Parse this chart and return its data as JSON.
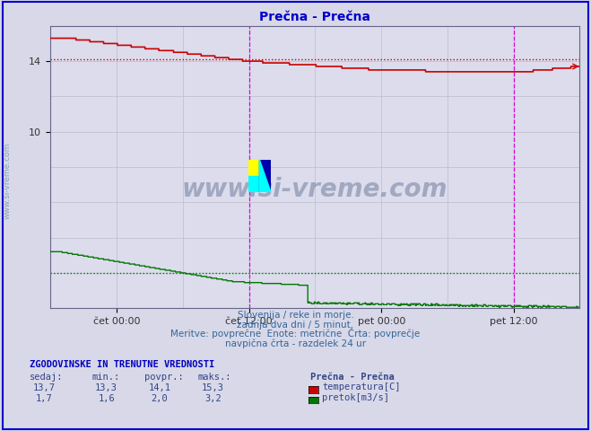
{
  "title": "Prečna - Prečna",
  "title_color": "#0000cc",
  "bg_color": "#d8d8e8",
  "plot_bg_color": "#dcdcec",
  "x_min": 0,
  "x_max": 575,
  "y_min": 0,
  "y_max": 16,
  "y_ticks": [
    10,
    14
  ],
  "x_tick_positions": [
    72,
    216,
    360,
    504
  ],
  "x_tick_labels": [
    "čet 00:00",
    "čet 12:00",
    "pet 00:00",
    "pet 12:00"
  ],
  "temp_color": "#cc0000",
  "flow_color": "#007700",
  "vline_color": "#dd00dd",
  "grid_color": "#bbbbcc",
  "temp_avg": 14.1,
  "flow_avg": 2.0,
  "watermark": "www.si-vreme.com",
  "watermark_color": "#1a3060",
  "watermark_alpha": 0.3,
  "subtitle_lines": [
    "Slovenija / reke in morje.",
    "zadnja dva dni / 5 minut.",
    "Meritve: povprečne  Enote: metrične  Črta: povprečje",
    "navpična črta - razdelek 24 ur"
  ],
  "table_header": "ZGODOVINSKE IN TRENUTNE VREDNOSTI",
  "table_cols": [
    "sedaj:",
    "min.:",
    "povpr.:",
    "maks.:"
  ],
  "legend_title": "Prečna - Prečna",
  "legend_items": [
    {
      "label": "temperatura[C]",
      "color": "#cc0000"
    },
    {
      "label": "pretok[m3/s]",
      "color": "#007700"
    }
  ],
  "table_data": [
    [
      "13,7",
      "13,3",
      "14,1",
      "15,3"
    ],
    [
      "1,7",
      "1,6",
      "2,0",
      "3,2"
    ]
  ]
}
